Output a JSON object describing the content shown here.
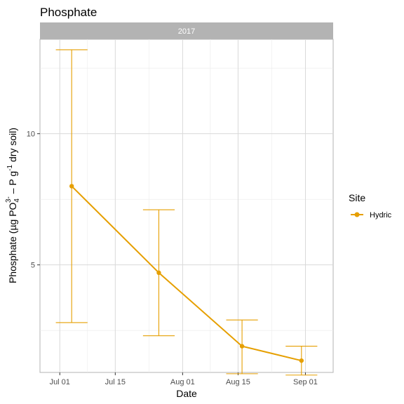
{
  "chart_data": {
    "type": "line",
    "title": "Phosphate",
    "facet": "2017",
    "xlabel": "Date",
    "ylabel": "Phosphate (µg PO4 3- – P g-1 dry soil)",
    "xlim": [
      "2017-06-26",
      "2017-09-08"
    ],
    "ylim": [
      0.9,
      13.6
    ],
    "x_ticks": [
      {
        "label": "Jul 01",
        "date": "2017-07-01"
      },
      {
        "label": "Jul 15",
        "date": "2017-07-15"
      },
      {
        "label": "Aug 01",
        "date": "2017-08-01"
      },
      {
        "label": "Aug 15",
        "date": "2017-08-15"
      },
      {
        "label": "Sep 01",
        "date": "2017-09-01"
      }
    ],
    "y_ticks": [
      5,
      10
    ],
    "grid": true,
    "legend": {
      "title": "Site",
      "position": "right"
    },
    "series": [
      {
        "name": "Hydric",
        "color": "#E69F00",
        "points": [
          {
            "x": "2017-07-04",
            "y": 8.0,
            "ymin": 2.8,
            "ymax": 13.2
          },
          {
            "x": "2017-07-26",
            "y": 4.7,
            "ymin": 2.3,
            "ymax": 7.1
          },
          {
            "x": "2017-08-16",
            "y": 1.9,
            "ymin": 0.85,
            "ymax": 2.9
          },
          {
            "x": "2017-08-31",
            "y": 1.35,
            "ymin": 0.8,
            "ymax": 1.9
          }
        ]
      }
    ]
  }
}
